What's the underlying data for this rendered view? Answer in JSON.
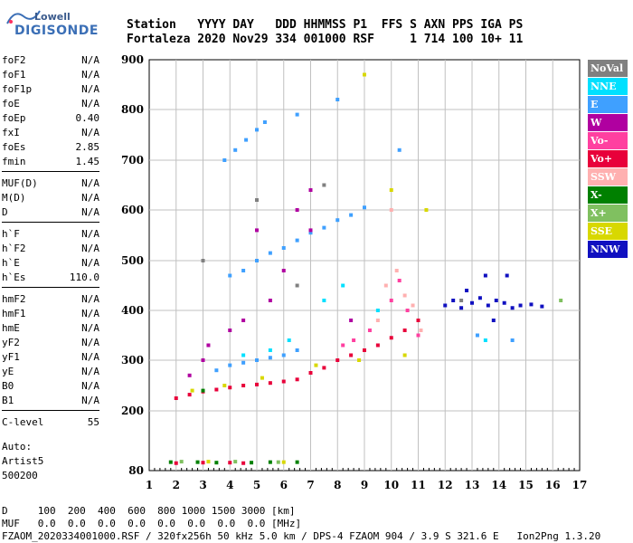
{
  "logo": {
    "line1": "Lowell",
    "line2": "DIGISONDE"
  },
  "header": {
    "labels": "Station   YYYY DAY   DDD HHMMSS P1  FFS S AXN PPS IGA PS",
    "values": "Fortaleza 2020 Nov29 334 001000 RSF     1 714 100 10+ 11"
  },
  "params": [
    {
      "k": "foF2",
      "v": "N/A"
    },
    {
      "k": "foF1",
      "v": "N/A"
    },
    {
      "k": "foF1p",
      "v": "N/A"
    },
    {
      "k": "foE",
      "v": "N/A"
    },
    {
      "k": "foEp",
      "v": "0.40"
    },
    {
      "k": "fxI",
      "v": "N/A"
    },
    {
      "k": "foEs",
      "v": "2.85"
    },
    {
      "k": "fmin",
      "v": "1.45"
    },
    {
      "k": "MUF(D)",
      "v": "N/A"
    },
    {
      "k": "M(D)",
      "v": "N/A"
    },
    {
      "k": "D",
      "v": "N/A"
    },
    {
      "k": "h`F",
      "v": "N/A"
    },
    {
      "k": "h`F2",
      "v": "N/A"
    },
    {
      "k": "h`E",
      "v": "N/A"
    },
    {
      "k": "h`Es",
      "v": "110.0"
    },
    {
      "k": "hmF2",
      "v": "N/A"
    },
    {
      "k": "hmF1",
      "v": "N/A"
    },
    {
      "k": "hmE",
      "v": "N/A"
    },
    {
      "k": "yF2",
      "v": "N/A"
    },
    {
      "k": "yF1",
      "v": "N/A"
    },
    {
      "k": "yE",
      "v": "N/A"
    },
    {
      "k": "B0",
      "v": "N/A"
    },
    {
      "k": "B1",
      "v": "N/A"
    },
    {
      "k": "C-level",
      "v": "55"
    }
  ],
  "auto": [
    "Auto:",
    "Artist5",
    "500200"
  ],
  "legend": [
    {
      "label": "NoVal",
      "color": "#808080"
    },
    {
      "label": "NNE",
      "color": "#00e0ff"
    },
    {
      "label": "E",
      "color": "#3fa0ff"
    },
    {
      "label": "W",
      "color": "#b000a0"
    },
    {
      "label": "Vo-",
      "color": "#ff40a0"
    },
    {
      "label": "Vo+",
      "color": "#e8003a"
    },
    {
      "label": "SSW",
      "color": "#ffb0b0"
    },
    {
      "label": "X-",
      "color": "#008000"
    },
    {
      "label": "X+",
      "color": "#80c060"
    },
    {
      "label": "SSE",
      "color": "#d8d800"
    },
    {
      "label": "NNW",
      "color": "#1010c0"
    }
  ],
  "footer": {
    "d_line": "D     100  200  400  600  800 1000 1500 3000 [km]",
    "muf_line": "MUF   0.0  0.0  0.0  0.0  0.0  0.0  0.0  0.0 [MHz]",
    "file_line": "FZAOM_2020334001000.RSF / 320fx256h 50 kHz 5.0 km / DPS-4 FZAOM 904 / 3.9 S 321.6 E   Ion2Png 1.3.20"
  },
  "chart_data": {
    "type": "scatter",
    "title": "",
    "xlabel": "",
    "ylabel": "",
    "xlim": [
      1,
      17
    ],
    "ylim": [
      80,
      900
    ],
    "x_ticks": [
      1,
      2,
      3,
      4,
      5,
      6,
      7,
      8,
      9,
      10,
      11,
      12,
      13,
      14,
      15,
      16,
      17
    ],
    "y_ticks": [
      80,
      200,
      300,
      400,
      500,
      600,
      700,
      800,
      900
    ],
    "grid": true,
    "legend_position": "right",
    "y_scale": "reciprocal",
    "series": [
      {
        "name": "E",
        "color": "#3fa0ff",
        "points": [
          [
            3.5,
            280
          ],
          [
            4.0,
            290
          ],
          [
            4.5,
            295
          ],
          [
            5.0,
            300
          ],
          [
            5.5,
            305
          ],
          [
            6.0,
            310
          ],
          [
            6.5,
            320
          ],
          [
            4.0,
            470
          ],
          [
            4.5,
            480
          ],
          [
            5.0,
            500
          ],
          [
            5.5,
            515
          ],
          [
            6.0,
            525
          ],
          [
            6.5,
            540
          ],
          [
            7.0,
            555
          ],
          [
            7.5,
            565
          ],
          [
            8.0,
            580
          ],
          [
            8.5,
            590
          ],
          [
            9.0,
            605
          ],
          [
            3.8,
            700
          ],
          [
            4.2,
            720
          ],
          [
            4.6,
            740
          ],
          [
            5.0,
            760
          ],
          [
            5.3,
            775
          ],
          [
            6.5,
            790
          ],
          [
            10.3,
            720
          ],
          [
            8.0,
            820
          ],
          [
            14.5,
            340
          ],
          [
            13.2,
            350
          ]
        ]
      },
      {
        "name": "Vo+",
        "color": "#e8003a",
        "points": [
          [
            2.0,
            225
          ],
          [
            2.5,
            232
          ],
          [
            3.0,
            238
          ],
          [
            3.5,
            242
          ],
          [
            4.0,
            246
          ],
          [
            4.5,
            250
          ],
          [
            5.0,
            252
          ],
          [
            5.5,
            255
          ],
          [
            6.0,
            258
          ],
          [
            6.5,
            262
          ],
          [
            7.0,
            275
          ],
          [
            7.5,
            285
          ],
          [
            8.0,
            300
          ],
          [
            8.5,
            310
          ],
          [
            9.0,
            320
          ],
          [
            9.5,
            330
          ],
          [
            10.0,
            345
          ],
          [
            10.5,
            360
          ],
          [
            11.0,
            380
          ],
          [
            2.0,
            95
          ],
          [
            3.0,
            96
          ],
          [
            4.0,
            96
          ],
          [
            4.5,
            95
          ]
        ]
      },
      {
        "name": "W",
        "color": "#b000a0",
        "points": [
          [
            2.5,
            270
          ],
          [
            3.0,
            300
          ],
          [
            3.2,
            330
          ],
          [
            4.0,
            360
          ],
          [
            4.5,
            380
          ],
          [
            5.5,
            420
          ],
          [
            6.5,
            600
          ],
          [
            7.0,
            640
          ],
          [
            7.0,
            560
          ],
          [
            5.0,
            560
          ],
          [
            6.0,
            480
          ],
          [
            8.5,
            380
          ]
        ]
      },
      {
        "name": "Vo-",
        "color": "#ff40a0",
        "points": [
          [
            8.2,
            330
          ],
          [
            8.6,
            340
          ],
          [
            9.2,
            360
          ],
          [
            10.0,
            420
          ],
          [
            10.3,
            460
          ],
          [
            10.6,
            400
          ],
          [
            11.0,
            350
          ]
        ]
      },
      {
        "name": "SSW",
        "color": "#ffb0b0",
        "points": [
          [
            9.5,
            380
          ],
          [
            9.8,
            450
          ],
          [
            10.2,
            480
          ],
          [
            10.5,
            430
          ],
          [
            10.8,
            410
          ],
          [
            11.1,
            360
          ],
          [
            10.0,
            600
          ]
        ]
      },
      {
        "name": "NNE",
        "color": "#00e0ff",
        "points": [
          [
            4.5,
            310
          ],
          [
            5.5,
            320
          ],
          [
            6.2,
            340
          ],
          [
            7.5,
            420
          ],
          [
            8.2,
            450
          ],
          [
            9.5,
            400
          ],
          [
            13.5,
            340
          ]
        ]
      },
      {
        "name": "SSE",
        "color": "#d8d800",
        "points": [
          [
            2.6,
            240
          ],
          [
            3.8,
            250
          ],
          [
            5.2,
            265
          ],
          [
            7.2,
            290
          ],
          [
            8.8,
            300
          ],
          [
            10.5,
            310
          ],
          [
            10.0,
            640
          ],
          [
            11.3,
            600
          ],
          [
            9.0,
            870
          ],
          [
            3.2,
            98
          ],
          [
            6.0,
            97
          ]
        ]
      },
      {
        "name": "X-",
        "color": "#008000",
        "points": [
          [
            1.8,
            97
          ],
          [
            2.8,
            97
          ],
          [
            3.5,
            96
          ],
          [
            4.8,
            96
          ],
          [
            5.5,
            97
          ],
          [
            6.5,
            97
          ],
          [
            3.0,
            240
          ]
        ]
      },
      {
        "name": "X+",
        "color": "#80c060",
        "points": [
          [
            16.3,
            420
          ],
          [
            2.2,
            98
          ],
          [
            4.2,
            98
          ],
          [
            5.8,
            97
          ]
        ]
      },
      {
        "name": "NoVal",
        "color": "#808080",
        "points": [
          [
            3.0,
            500
          ],
          [
            5.0,
            620
          ],
          [
            6.5,
            450
          ],
          [
            7.5,
            650
          ],
          [
            12.6,
            420
          ]
        ]
      },
      {
        "name": "NNW",
        "color": "#1010c0",
        "points": [
          [
            12.0,
            410
          ],
          [
            12.3,
            420
          ],
          [
            12.6,
            405
          ],
          [
            13.0,
            415
          ],
          [
            13.3,
            425
          ],
          [
            13.6,
            410
          ],
          [
            13.9,
            420
          ],
          [
            14.2,
            415
          ],
          [
            14.5,
            405
          ],
          [
            14.8,
            410
          ],
          [
            15.2,
            412
          ],
          [
            15.6,
            408
          ],
          [
            13.5,
            470
          ],
          [
            14.3,
            470
          ],
          [
            12.8,
            440
          ],
          [
            13.8,
            380
          ]
        ]
      }
    ]
  }
}
